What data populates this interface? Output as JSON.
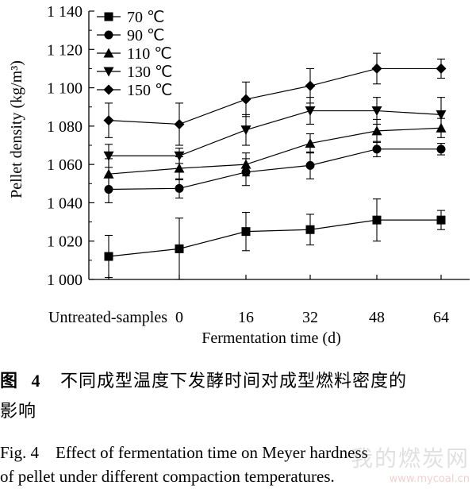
{
  "chart_data": {
    "type": "line",
    "categories": [
      "Untreated-samples",
      "0",
      "16",
      "32",
      "48",
      "64"
    ],
    "xlabel": "Fermentation time (d)",
    "ylabel": "Pellet density (kg/m³)",
    "ylim": [
      1000,
      1140
    ],
    "yticks": [
      "1 000",
      "1 020",
      "1 040",
      "1 060",
      "1 080",
      "1 100",
      "1 120",
      "1 140"
    ],
    "legend_position": "top-left",
    "grid": false,
    "series": [
      {
        "name": "70 ℃",
        "marker": "square",
        "values": [
          1012,
          1016,
          1025,
          1026,
          1031,
          1031
        ],
        "errors": [
          11,
          16,
          10,
          8,
          11,
          5
        ]
      },
      {
        "name": "90 ℃",
        "marker": "circle",
        "values": [
          1047,
          1047.5,
          1056,
          1059.5,
          1068,
          1068
        ],
        "errors": [
          7,
          5,
          7,
          7,
          4,
          3
        ]
      },
      {
        "name": "110 ℃",
        "marker": "triangle-up",
        "values": [
          1055,
          1058,
          1060,
          1071,
          1077.5,
          1079
        ],
        "errors": [
          8,
          6,
          6,
          5,
          6,
          5
        ]
      },
      {
        "name": "130 ℃",
        "marker": "triangle-down",
        "values": [
          1064.5,
          1064.5,
          1078,
          1088,
          1088,
          1086
        ],
        "errors": [
          6,
          4,
          8,
          7,
          7,
          9
        ]
      },
      {
        "name": "150 ℃",
        "marker": "diamond",
        "values": [
          1083,
          1081,
          1094,
          1101,
          1110,
          1110
        ],
        "errors": [
          9,
          11,
          9,
          9,
          8,
          5
        ]
      }
    ]
  },
  "caption": {
    "cn_label": "图",
    "cn_number": "4",
    "cn_text_line1": "不同成型温度下发酵时间对成型燃料密度的",
    "cn_text_line2": "影响",
    "en_line1": "Fig. 4    Effect of fermentation time on Meyer hardness",
    "en_line2": "of pellet under different compaction temperatures."
  },
  "watermark": {
    "text": "我的燃炭网",
    "url": "www.mycoal.cn"
  }
}
